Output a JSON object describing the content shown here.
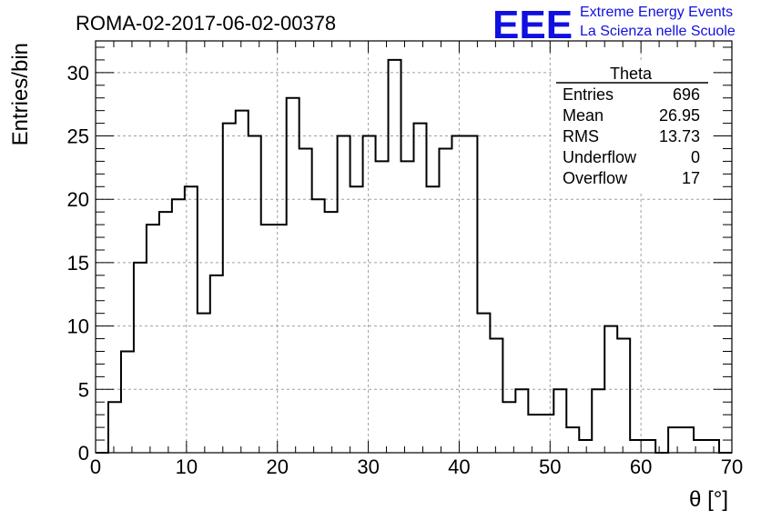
{
  "title": "ROMA-02-2017-06-02-00378",
  "logo": {
    "text": "EEE",
    "line1": "Extreme Energy Events",
    "line2": "La Scienza nelle Scuole",
    "color": "#1010e0"
  },
  "chart_data": {
    "type": "bar",
    "style": "step-histogram",
    "xlabel": "θ [°]",
    "ylabel": "Entries/bin",
    "xlim": [
      0,
      70
    ],
    "ylim": [
      0,
      32.5
    ],
    "bin_width": 1.4,
    "x_ticks": [
      0,
      10,
      20,
      30,
      40,
      50,
      60,
      70
    ],
    "y_ticks": [
      0,
      5,
      10,
      15,
      20,
      25,
      30
    ],
    "grid": true,
    "values": [
      0,
      4,
      8,
      15,
      18,
      19,
      20,
      21,
      11,
      14,
      26,
      27,
      25,
      18,
      18,
      28,
      24,
      20,
      19,
      25,
      21,
      25,
      23,
      31,
      23,
      26,
      21,
      24,
      25,
      25,
      11,
      9,
      4,
      5,
      3,
      3,
      5,
      2,
      1,
      5,
      10,
      9,
      1,
      1,
      0,
      2,
      2,
      1,
      1,
      0
    ]
  },
  "stats": {
    "title": "Theta",
    "rows": [
      {
        "label": "Entries",
        "value": "696"
      },
      {
        "label": "Mean",
        "value": "26.95"
      },
      {
        "label": "RMS",
        "value": "13.73"
      },
      {
        "label": "Underflow",
        "value": "0"
      },
      {
        "label": "Overflow",
        "value": "17"
      }
    ]
  }
}
